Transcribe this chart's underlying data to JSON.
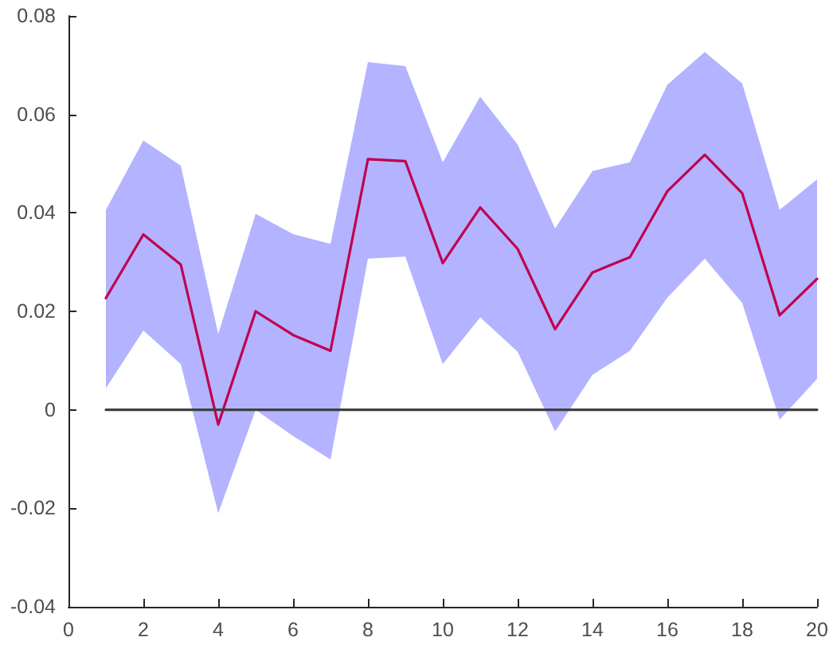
{
  "chart_data": {
    "type": "line",
    "xlim": [
      0,
      20
    ],
    "xticks": [
      0,
      2,
      4,
      6,
      8,
      10,
      12,
      14,
      16,
      18,
      20
    ],
    "ylim": [
      -0.04,
      0.08
    ],
    "yticks": [
      -0.04,
      -0.02,
      0,
      0.02,
      0.04,
      0.06,
      0.08
    ],
    "grid": false,
    "marker": "none",
    "line_style": "solid",
    "series": [
      {
        "color": "#c0004e",
        "x": [
          1,
          2,
          3,
          4,
          5,
          6,
          7,
          8,
          9,
          10,
          11,
          12,
          13,
          14,
          15,
          16,
          17,
          18,
          19,
          20
        ],
        "values": [
          0.0227,
          0.0356,
          0.0295,
          -0.003,
          0.02,
          0.0152,
          0.012,
          0.0509,
          0.0505,
          0.0298,
          0.0411,
          0.0327,
          0.0164,
          0.0279,
          0.031,
          0.0444,
          0.0518,
          0.044,
          0.0192,
          0.0266
        ],
        "lower": [
          0.0044,
          0.0161,
          0.0093,
          -0.021,
          0,
          -0.0053,
          -0.0101,
          0.0307,
          0.0311,
          0.0093,
          0.0188,
          0.0118,
          -0.0044,
          0.0071,
          0.012,
          0.0228,
          0.0307,
          0.0217,
          -0.002,
          0.0063
        ],
        "upper": [
          0.0406,
          0.0547,
          0.0496,
          0.0154,
          0.0398,
          0.0357,
          0.0337,
          0.0706,
          0.0698,
          0.0503,
          0.0636,
          0.0539,
          0.0368,
          0.0485,
          0.0503,
          0.066,
          0.0727,
          0.0663,
          0.0406,
          0.0468
        ]
      },
      {
        "color": "#404040",
        "x": [
          1,
          20
        ],
        "values": [
          0,
          0
        ]
      }
    ]
  }
}
